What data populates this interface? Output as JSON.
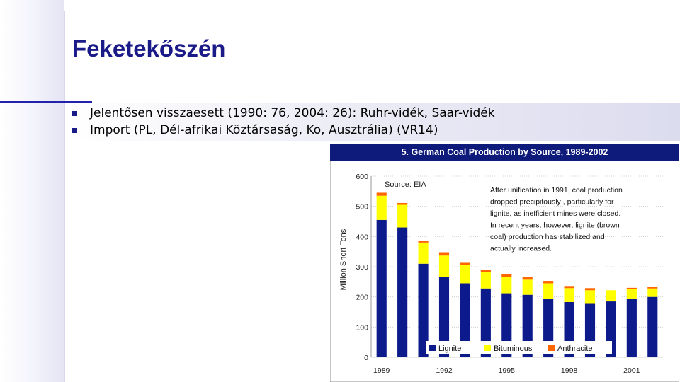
{
  "slide": {
    "title": "Feketekőszén",
    "bullets": [
      "Jelentősen visszaesett (1990: 76, 2004: 26): Ruhr-vidék, Saar-vidék",
      "Import (PL, Dél-afrikai Köztársaság, Ko, Ausztrália) (VR14)"
    ],
    "accent_color": "#1a1a88"
  },
  "chart_data": {
    "type": "bar",
    "stacked": true,
    "title": "5. German Coal Production by Source, 1989-2002",
    "source": "Source: EIA",
    "annotation": "After unification in 1991, coal production dropped precipitously , particularly for lignite, as inefficient mines were closed. In recent years, however, lignite (brown coal) production has  stabilized and actually increased.",
    "ylabel": "Million Short Tons",
    "xlabel": "",
    "ylim": [
      0,
      600
    ],
    "yticks": [
      0,
      100,
      200,
      300,
      400,
      500,
      600
    ],
    "x": [
      1989,
      1990,
      1991,
      1992,
      1993,
      1994,
      1995,
      1996,
      1997,
      1998,
      1999,
      2000,
      2001,
      2002
    ],
    "xtick_labels": [
      "1989",
      "1992",
      "1995",
      "1998",
      "2001"
    ],
    "xtick_years": [
      1989,
      1992,
      1995,
      1998,
      2001
    ],
    "grid": true,
    "legend_position": "bottom",
    "series": [
      {
        "name": "Lignite",
        "color": "#0d1a8c",
        "values": [
          455,
          430,
          310,
          265,
          245,
          228,
          212,
          207,
          193,
          183,
          177,
          185,
          193,
          200
        ]
      },
      {
        "name": "Bituminous",
        "color": "#ffff00",
        "values": [
          80,
          75,
          70,
          72,
          60,
          54,
          55,
          50,
          52,
          46,
          45,
          37,
          32,
          28
        ]
      },
      {
        "name": "Anthracite",
        "color": "#ff6600",
        "values": [
          10,
          6,
          6,
          11,
          8,
          8,
          8,
          8,
          8,
          7,
          7,
          0,
          5,
          5
        ]
      }
    ]
  }
}
